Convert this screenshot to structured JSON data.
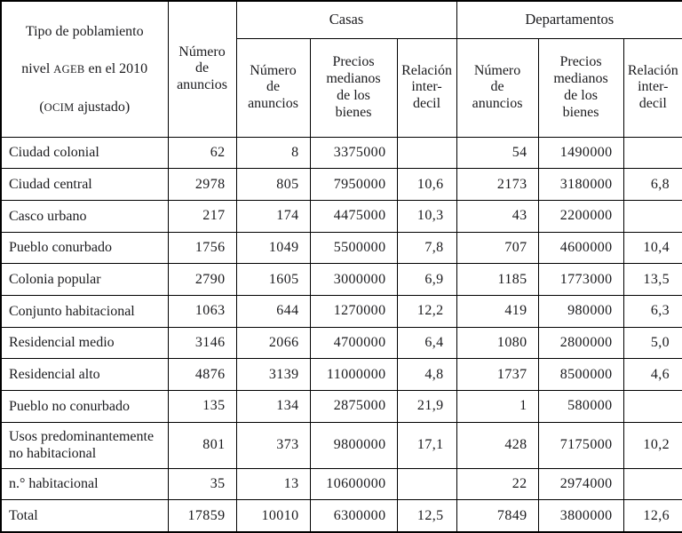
{
  "table": {
    "header": {
      "tipo": {
        "line1": "Tipo de poblamiento",
        "line2": [
          "nivel ",
          "AGEB",
          " en el 2010"
        ],
        "line3": [
          "(",
          "OCIM",
          " ajustado)"
        ]
      },
      "num_anuncios_total": "Número\nde\nanuncios",
      "groups": {
        "casas": "Casas",
        "departamentos": "Departamentos"
      },
      "sub": {
        "num_anuncios": "Número\nde\nanuncios",
        "precios": "Precios\nmedianos\nde los\nbienes",
        "relacion": "Relación\ninter-\ndecil"
      }
    },
    "rows": [
      {
        "label": "Ciudad colonial",
        "anuncios": "62",
        "casas": {
          "anuncios": "8",
          "precio": "3375000",
          "relacion": ""
        },
        "departamentos": {
          "anuncios": "54",
          "precio": "1490000",
          "relacion": ""
        }
      },
      {
        "label": "Ciudad central",
        "anuncios": "2978",
        "casas": {
          "anuncios": "805",
          "precio": "7950000",
          "relacion": "10,6"
        },
        "departamentos": {
          "anuncios": "2173",
          "precio": "3180000",
          "relacion": "6,8"
        }
      },
      {
        "label": "Casco urbano",
        "anuncios": "217",
        "casas": {
          "anuncios": "174",
          "precio": "4475000",
          "relacion": "10,3"
        },
        "departamentos": {
          "anuncios": "43",
          "precio": "2200000",
          "relacion": ""
        }
      },
      {
        "label": "Pueblo conurbado",
        "anuncios": "1756",
        "casas": {
          "anuncios": "1049",
          "precio": "5500000",
          "relacion": "7,8"
        },
        "departamentos": {
          "anuncios": "707",
          "precio": "4600000",
          "relacion": "10,4"
        }
      },
      {
        "label": "Colonia popular",
        "anuncios": "2790",
        "casas": {
          "anuncios": "1605",
          "precio": "3000000",
          "relacion": "6,9"
        },
        "departamentos": {
          "anuncios": "1185",
          "precio": "1773000",
          "relacion": "13,5"
        }
      },
      {
        "label": "Conjunto habitacional",
        "anuncios": "1063",
        "casas": {
          "anuncios": "644",
          "precio": "1270000",
          "relacion": "12,2"
        },
        "departamentos": {
          "anuncios": "419",
          "precio": "980000",
          "relacion": "6,3"
        }
      },
      {
        "label": "Residencial medio",
        "anuncios": "3146",
        "casas": {
          "anuncios": "2066",
          "precio": "4700000",
          "relacion": "6,4"
        },
        "departamentos": {
          "anuncios": "1080",
          "precio": "2800000",
          "relacion": "5,0"
        }
      },
      {
        "label": "Residencial alto",
        "anuncios": "4876",
        "casas": {
          "anuncios": "3139",
          "precio": "11000000",
          "relacion": "4,8"
        },
        "departamentos": {
          "anuncios": "1737",
          "precio": "8500000",
          "relacion": "4,6"
        }
      },
      {
        "label": "Pueblo no conurbado",
        "anuncios": "135",
        "casas": {
          "anuncios": "134",
          "precio": "2875000",
          "relacion": "21,9"
        },
        "departamentos": {
          "anuncios": "1",
          "precio": "580000",
          "relacion": ""
        }
      },
      {
        "label": "Usos predominantemente no habitacional",
        "anuncios": "801",
        "casas": {
          "anuncios": "373",
          "precio": "9800000",
          "relacion": "17,1"
        },
        "departamentos": {
          "anuncios": "428",
          "precio": "7175000",
          "relacion": "10,2"
        }
      },
      {
        "label": "n.° habitacional",
        "anuncios": "35",
        "casas": {
          "anuncios": "13",
          "precio": "10600000",
          "relacion": ""
        },
        "departamentos": {
          "anuncios": "22",
          "precio": "2974000",
          "relacion": ""
        }
      },
      {
        "label": "Total",
        "anuncios": "17859",
        "casas": {
          "anuncios": "10010",
          "precio": "6300000",
          "relacion": "12,5"
        },
        "departamentos": {
          "anuncios": "7849",
          "precio": "3800000",
          "relacion": "12,6"
        }
      }
    ]
  },
  "colors": {
    "border": "#000000",
    "text": "#1b1b1e",
    "background": "#ffffff"
  }
}
